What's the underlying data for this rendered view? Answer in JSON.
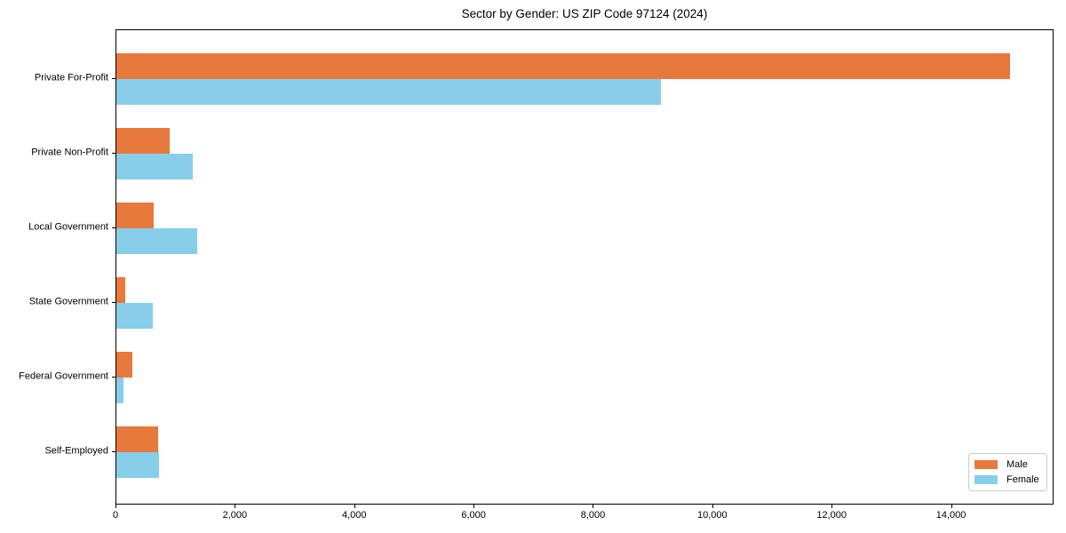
{
  "chart_data": {
    "type": "bar",
    "orientation": "horizontal",
    "title": "Sector by Gender: US ZIP Code 97124 (2024)",
    "categories": [
      "Private For-Profit",
      "Private Non-Profit",
      "Local Government",
      "State Government",
      "Federal Government",
      "Self-Employed"
    ],
    "series": [
      {
        "name": "Male",
        "color": "#E8793D",
        "values": [
          14970,
          900,
          625,
          150,
          265,
          700
        ]
      },
      {
        "name": "Female",
        "color": "#87CEEB",
        "values": [
          9130,
          1280,
          1350,
          605,
          120,
          715
        ]
      }
    ],
    "xlabel": "",
    "ylabel": "",
    "xlim": [
      0,
      15718
    ],
    "x_ticks": [
      0,
      2000,
      4000,
      6000,
      8000,
      10000,
      12000,
      14000
    ],
    "x_tick_labels": [
      "0",
      "2,000",
      "4,000",
      "6,000",
      "8,000",
      "10,000",
      "12,000",
      "14,000"
    ],
    "grid": false,
    "legend_position": "lower right"
  },
  "colors": {
    "male": "#E8793D",
    "female": "#87CEEB",
    "axis": "#000000",
    "background": "#ffffff",
    "legend_border": "#cccccc"
  }
}
